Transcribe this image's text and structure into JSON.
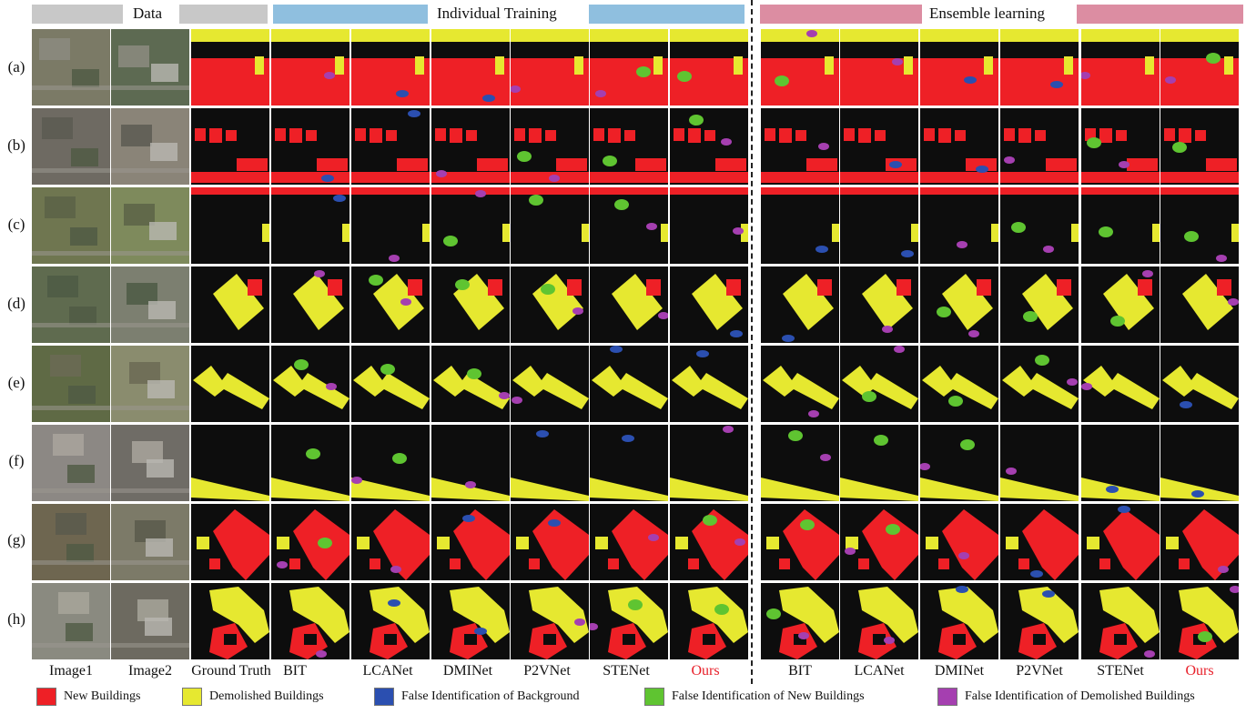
{
  "header": {
    "data_label": "Data",
    "individual_label": "Individual Training",
    "ensemble_label": "Ensemble learning"
  },
  "colors": {
    "data_bar": "#c8c8c8",
    "individual_bar": "#8fbfdf",
    "ensemble_bar": "#dc8da2",
    "new_buildings": "#ee2026",
    "demolished_buildings": "#e6e830",
    "false_background": "#2b4fb0",
    "false_new": "#5fc431",
    "false_demolished": "#a53fb0",
    "background": "#0d0d0d",
    "ours_label": "#e8202a"
  },
  "row_labels": [
    "(a)",
    "(b)",
    "(c)",
    "(d)",
    "(e)",
    "(f)",
    "(g)",
    "(h)"
  ],
  "column_labels": {
    "image1": "Image1",
    "image2": "Image2",
    "ground_truth": "Ground Truth",
    "individual": [
      "BIT",
      "LCANet",
      "DMINet",
      "P2VNet",
      "STENet",
      "Ours"
    ],
    "ensemble": [
      "BIT",
      "LCANet",
      "DMINet",
      "P2VNet",
      "STENet",
      "Ours"
    ]
  },
  "legend": [
    {
      "label": "New Buildings",
      "color_key": "new_buildings"
    },
    {
      "label": "Demolished Buildings",
      "color_key": "demolished_buildings"
    },
    {
      "label": "False Identification of Background",
      "color_key": "false_background"
    },
    {
      "label": "False Identification of New Buildings",
      "color_key": "false_new"
    },
    {
      "label": "False Identification of Demolished Buildings",
      "color_key": "false_demolished"
    }
  ]
}
